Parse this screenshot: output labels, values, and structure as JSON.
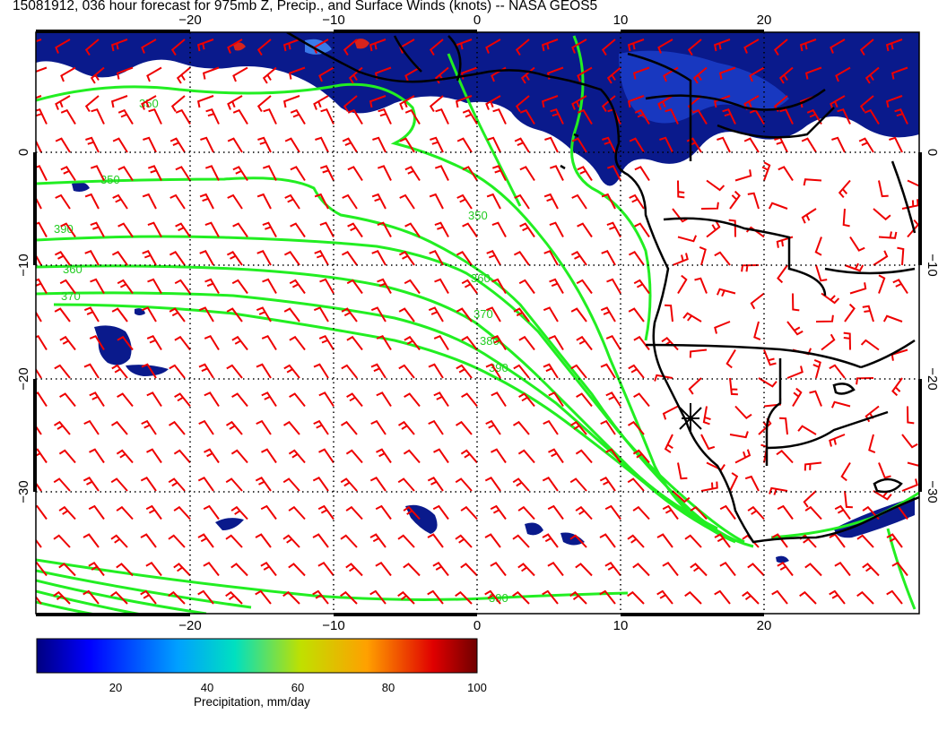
{
  "title": "15081912, 036 hour forecast for 975mb Z, Precip., and Surface Winds (knots) -- NASA GEOS5",
  "map": {
    "lon_ticks": [
      "−20",
      "−10",
      "0",
      "10",
      "20"
    ],
    "lat_ticks": [
      "0",
      "−10",
      "−20",
      "−30"
    ],
    "contour_labels": [
      "350",
      "350",
      "360",
      "370",
      "390",
      "350",
      "360",
      "370",
      "380",
      "390",
      "390"
    ],
    "colors": {
      "precip_deep": "#0a1a8c",
      "precip_mid": "#2a5de0",
      "precip_hot": "#d8241c",
      "contours": "#22ee22",
      "wind_barbs": "#ee0000",
      "coast": "#000000",
      "grid": "#000000"
    },
    "station_marker": "asterisk-icon"
  },
  "colorbar": {
    "labels": [
      "20",
      "40",
      "60",
      "80",
      "100"
    ],
    "title": "Precipitation, mm/day",
    "colors": [
      "#000080",
      "#0000ff",
      "#00a0ff",
      "#00e0c0",
      "#c0e000",
      "#ffa000",
      "#e00000",
      "#700000"
    ]
  }
}
